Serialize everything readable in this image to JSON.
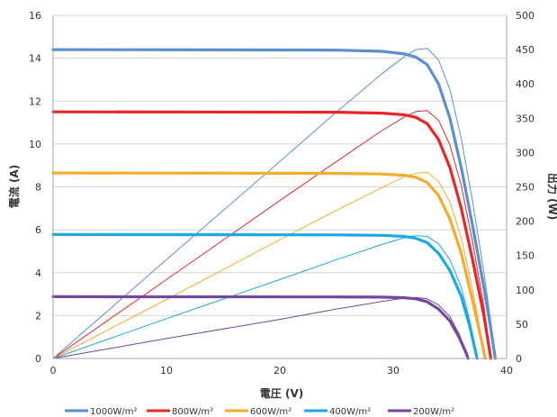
{
  "chart_data": {
    "type": "line",
    "title": "",
    "xlabel": "電圧 (V)",
    "ylabel": "電流 (A)",
    "y2label": "出力 (W)",
    "xlim": [
      0,
      40
    ],
    "ylim": [
      0,
      16
    ],
    "y2lim": [
      0,
      500
    ],
    "x_ticks": [
      "0",
      "10",
      "20",
      "30",
      "40"
    ],
    "y_ticks": [
      "0",
      "2",
      "4",
      "6",
      "8",
      "10",
      "12",
      "14",
      "16"
    ],
    "y2_ticks": [
      "0",
      "50",
      "100",
      "150",
      "200",
      "250",
      "300",
      "350",
      "400",
      "450",
      "500"
    ],
    "grid": "horizontal",
    "legend_position": "bottom",
    "series": [
      {
        "name": "1000W/m²",
        "color": "#5b8fd0",
        "current_A": [
          [
            0,
            14.4
          ],
          [
            25,
            14.38
          ],
          [
            29,
            14.32
          ],
          [
            31,
            14.2
          ],
          [
            32,
            14.05
          ],
          [
            33,
            13.7
          ],
          [
            34,
            12.8
          ],
          [
            35,
            11.2
          ],
          [
            36,
            8.9
          ],
          [
            37,
            6.2
          ],
          [
            38,
            3.3
          ],
          [
            38.6,
            1.4
          ],
          [
            39.0,
            0
          ]
        ],
        "power_W": [
          [
            0,
            0
          ],
          [
            10,
            144
          ],
          [
            20,
            287
          ],
          [
            25,
            359
          ],
          [
            29,
            415
          ],
          [
            31,
            440
          ],
          [
            32,
            450
          ],
          [
            33,
            452
          ],
          [
            34,
            435
          ],
          [
            35,
            392
          ],
          [
            36,
            320
          ],
          [
            37,
            229
          ],
          [
            38,
            125
          ],
          [
            38.6,
            54
          ],
          [
            39.0,
            0
          ]
        ]
      },
      {
        "name": "800W/m²",
        "color": "#e8262a",
        "current_A": [
          [
            0,
            11.5
          ],
          [
            25,
            11.48
          ],
          [
            29,
            11.44
          ],
          [
            31,
            11.36
          ],
          [
            32,
            11.24
          ],
          [
            33,
            10.95
          ],
          [
            34,
            10.2
          ],
          [
            35,
            8.9
          ],
          [
            36,
            7.0
          ],
          [
            37,
            4.6
          ],
          [
            38,
            2.0
          ],
          [
            38.6,
            0
          ]
        ],
        "power_W": [
          [
            0,
            0
          ],
          [
            10,
            115
          ],
          [
            20,
            230
          ],
          [
            25,
            287
          ],
          [
            29,
            332
          ],
          [
            31,
            352
          ],
          [
            32,
            360
          ],
          [
            33,
            361
          ],
          [
            34,
            347
          ],
          [
            35,
            311
          ],
          [
            36,
            252
          ],
          [
            37,
            170
          ],
          [
            38,
            76
          ],
          [
            38.6,
            0
          ]
        ]
      },
      {
        "name": "600W/m²",
        "color": "#f5ac2e",
        "current_A": [
          [
            0,
            8.65
          ],
          [
            25,
            8.63
          ],
          [
            29,
            8.6
          ],
          [
            31,
            8.54
          ],
          [
            32,
            8.45
          ],
          [
            33,
            8.2
          ],
          [
            34,
            7.6
          ],
          [
            35,
            6.5
          ],
          [
            36,
            4.9
          ],
          [
            37,
            2.7
          ],
          [
            37.8,
            0.8
          ],
          [
            38.1,
            0
          ]
        ],
        "power_W": [
          [
            0,
            0
          ],
          [
            10,
            86
          ],
          [
            20,
            173
          ],
          [
            25,
            216
          ],
          [
            29,
            249
          ],
          [
            31,
            265
          ],
          [
            32,
            270
          ],
          [
            33,
            271
          ],
          [
            34,
            258
          ],
          [
            35,
            228
          ],
          [
            36,
            176
          ],
          [
            37,
            100
          ],
          [
            37.8,
            30
          ],
          [
            38.1,
            0
          ]
        ]
      },
      {
        "name": "400W/m²",
        "color": "#1ba9e1",
        "current_A": [
          [
            0,
            5.78
          ],
          [
            25,
            5.76
          ],
          [
            29,
            5.74
          ],
          [
            31,
            5.69
          ],
          [
            32,
            5.6
          ],
          [
            33,
            5.4
          ],
          [
            34,
            4.9
          ],
          [
            35,
            4.1
          ],
          [
            36,
            2.9
          ],
          [
            36.8,
            1.4
          ],
          [
            37.4,
            0
          ]
        ],
        "power_W": [
          [
            0,
            0
          ],
          [
            10,
            58
          ],
          [
            20,
            115
          ],
          [
            25,
            144
          ],
          [
            29,
            166
          ],
          [
            31,
            176
          ],
          [
            32,
            179
          ],
          [
            33,
            178
          ],
          [
            34,
            167
          ],
          [
            35,
            144
          ],
          [
            36,
            104
          ],
          [
            36.8,
            52
          ],
          [
            37.4,
            0
          ]
        ]
      },
      {
        "name": "200W/m²",
        "color": "#7346a0",
        "current_A": [
          [
            0,
            2.88
          ],
          [
            25,
            2.87
          ],
          [
            29,
            2.86
          ],
          [
            31,
            2.83
          ],
          [
            32,
            2.78
          ],
          [
            33,
            2.64
          ],
          [
            34,
            2.3
          ],
          [
            35,
            1.75
          ],
          [
            35.8,
            1.0
          ],
          [
            36.4,
            0.3
          ],
          [
            36.6,
            0
          ]
        ],
        "power_W": [
          [
            0,
            0
          ],
          [
            10,
            29
          ],
          [
            20,
            57
          ],
          [
            25,
            72
          ],
          [
            29,
            83
          ],
          [
            31,
            88
          ],
          [
            32,
            89
          ],
          [
            33,
            87
          ],
          [
            34,
            78
          ],
          [
            35,
            61
          ],
          [
            35.8,
            36
          ],
          [
            36.4,
            11
          ],
          [
            36.6,
            0
          ]
        ]
      }
    ]
  }
}
